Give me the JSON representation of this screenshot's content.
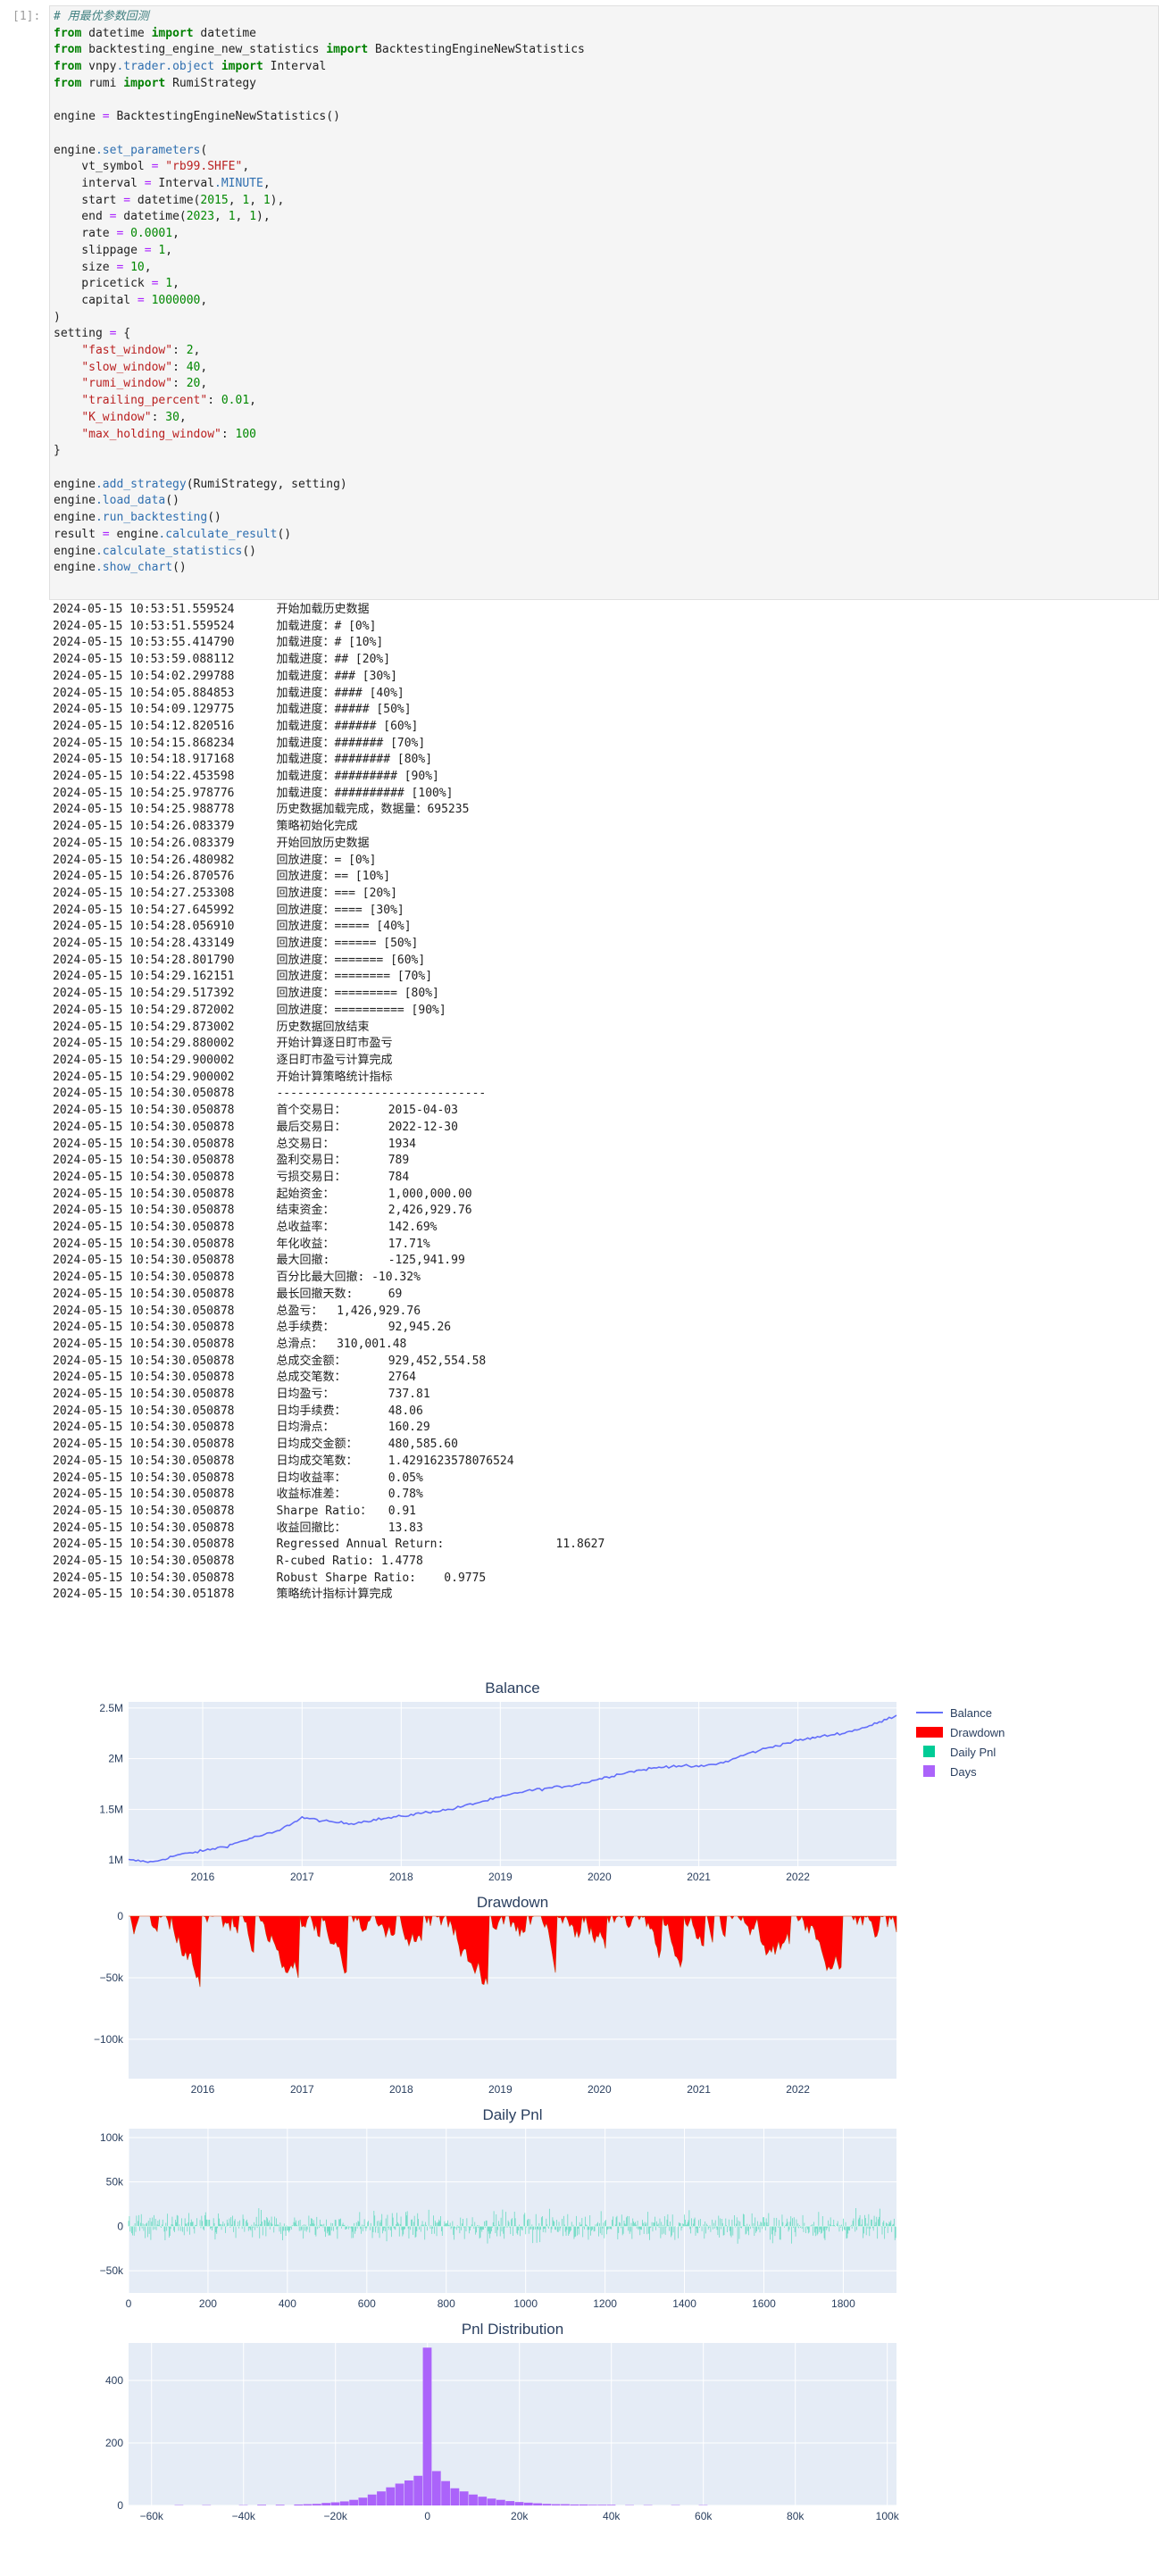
{
  "cell": {
    "prompt": "[1]:",
    "code_lines": [
      [
        [
          "c",
          "# 用最优参数回测"
        ]
      ],
      [
        [
          "k",
          "from"
        ],
        [
          "t",
          " datetime "
        ],
        [
          "k",
          "import"
        ],
        [
          "t",
          " datetime"
        ]
      ],
      [
        [
          "k",
          "from"
        ],
        [
          "t",
          " backtesting_engine_new_statistics "
        ],
        [
          "k",
          "import"
        ],
        [
          "t",
          " BacktestingEngineNewStatistics"
        ]
      ],
      [
        [
          "k",
          "from"
        ],
        [
          "t",
          " vnpy"
        ],
        [
          "f",
          ".trader.object"
        ],
        [
          "t",
          " "
        ],
        [
          "k",
          "import"
        ],
        [
          "t",
          " Interval"
        ]
      ],
      [
        [
          "k",
          "from"
        ],
        [
          "t",
          " rumi "
        ],
        [
          "k",
          "import"
        ],
        [
          "t",
          " RumiStrategy"
        ]
      ],
      [
        [
          "t",
          ""
        ]
      ],
      [
        [
          "t",
          "engine "
        ],
        [
          "o",
          "="
        ],
        [
          "t",
          " BacktestingEngineNewStatistics()"
        ]
      ],
      [
        [
          "t",
          ""
        ]
      ],
      [
        [
          "t",
          "engine"
        ],
        [
          "f",
          ".set_parameters"
        ],
        [
          "t",
          "("
        ]
      ],
      [
        [
          "t",
          "    vt_symbol "
        ],
        [
          "o",
          "="
        ],
        [
          "t",
          " "
        ],
        [
          "s",
          "\"rb99.SHFE\""
        ],
        [
          "t",
          ","
        ]
      ],
      [
        [
          "t",
          "    interval "
        ],
        [
          "o",
          "="
        ],
        [
          "t",
          " Interval"
        ],
        [
          "f",
          ".MINUTE"
        ],
        [
          "t",
          ","
        ]
      ],
      [
        [
          "t",
          "    start "
        ],
        [
          "o",
          "="
        ],
        [
          "t",
          " datetime("
        ],
        [
          "n",
          "2015"
        ],
        [
          "t",
          ", "
        ],
        [
          "n",
          "1"
        ],
        [
          "t",
          ", "
        ],
        [
          "n",
          "1"
        ],
        [
          "t",
          "),"
        ]
      ],
      [
        [
          "t",
          "    end "
        ],
        [
          "o",
          "="
        ],
        [
          "t",
          " datetime("
        ],
        [
          "n",
          "2023"
        ],
        [
          "t",
          ", "
        ],
        [
          "n",
          "1"
        ],
        [
          "t",
          ", "
        ],
        [
          "n",
          "1"
        ],
        [
          "t",
          "),"
        ]
      ],
      [
        [
          "t",
          "    rate "
        ],
        [
          "o",
          "="
        ],
        [
          "t",
          " "
        ],
        [
          "n",
          "0.0001"
        ],
        [
          "t",
          ","
        ]
      ],
      [
        [
          "t",
          "    slippage "
        ],
        [
          "o",
          "="
        ],
        [
          "t",
          " "
        ],
        [
          "n",
          "1"
        ],
        [
          "t",
          ","
        ]
      ],
      [
        [
          "t",
          "    size "
        ],
        [
          "o",
          "="
        ],
        [
          "t",
          " "
        ],
        [
          "n",
          "10"
        ],
        [
          "t",
          ","
        ]
      ],
      [
        [
          "t",
          "    pricetick "
        ],
        [
          "o",
          "="
        ],
        [
          "t",
          " "
        ],
        [
          "n",
          "1"
        ],
        [
          "t",
          ","
        ]
      ],
      [
        [
          "t",
          "    capital "
        ],
        [
          "o",
          "="
        ],
        [
          "t",
          " "
        ],
        [
          "n",
          "1000000"
        ],
        [
          "t",
          ","
        ]
      ],
      [
        [
          "t",
          ")"
        ]
      ],
      [
        [
          "t",
          "setting "
        ],
        [
          "o",
          "="
        ],
        [
          "t",
          " {"
        ]
      ],
      [
        [
          "t",
          "    "
        ],
        [
          "s",
          "\"fast_window\""
        ],
        [
          "t",
          ": "
        ],
        [
          "n",
          "2"
        ],
        [
          "t",
          ","
        ]
      ],
      [
        [
          "t",
          "    "
        ],
        [
          "s",
          "\"slow_window\""
        ],
        [
          "t",
          ": "
        ],
        [
          "n",
          "40"
        ],
        [
          "t",
          ","
        ]
      ],
      [
        [
          "t",
          "    "
        ],
        [
          "s",
          "\"rumi_window\""
        ],
        [
          "t",
          ": "
        ],
        [
          "n",
          "20"
        ],
        [
          "t",
          ","
        ]
      ],
      [
        [
          "t",
          "    "
        ],
        [
          "s",
          "\"trailing_percent\""
        ],
        [
          "t",
          ": "
        ],
        [
          "n",
          "0.01"
        ],
        [
          "t",
          ","
        ]
      ],
      [
        [
          "t",
          "    "
        ],
        [
          "s",
          "\"K_window\""
        ],
        [
          "t",
          ": "
        ],
        [
          "n",
          "30"
        ],
        [
          "t",
          ","
        ]
      ],
      [
        [
          "t",
          "    "
        ],
        [
          "s",
          "\"max_holding_window\""
        ],
        [
          "t",
          ": "
        ],
        [
          "n",
          "100"
        ]
      ],
      [
        [
          "t",
          "}"
        ]
      ],
      [
        [
          "t",
          ""
        ]
      ],
      [
        [
          "t",
          "engine"
        ],
        [
          "f",
          ".add_strategy"
        ],
        [
          "t",
          "(RumiStrategy, setting)"
        ]
      ],
      [
        [
          "t",
          "engine"
        ],
        [
          "f",
          ".load_data"
        ],
        [
          "t",
          "()"
        ]
      ],
      [
        [
          "t",
          "engine"
        ],
        [
          "f",
          ".run_backtesting"
        ],
        [
          "t",
          "()"
        ]
      ],
      [
        [
          "t",
          "result "
        ],
        [
          "o",
          "="
        ],
        [
          "t",
          " engine"
        ],
        [
          "f",
          ".calculate_result"
        ],
        [
          "t",
          "()"
        ]
      ],
      [
        [
          "t",
          "engine"
        ],
        [
          "f",
          ".calculate_statistics"
        ],
        [
          "t",
          "()"
        ]
      ],
      [
        [
          "t",
          "engine"
        ],
        [
          "f",
          ".show_chart"
        ],
        [
          "t",
          "()"
        ]
      ]
    ]
  },
  "output_lines": [
    [
      "2024-05-15 10:53:51.559524",
      "开始加载历史数据"
    ],
    [
      "2024-05-15 10:53:51.559524",
      "加载进度：# [0%]"
    ],
    [
      "2024-05-15 10:53:55.414790",
      "加载进度：# [10%]"
    ],
    [
      "2024-05-15 10:53:59.088112",
      "加载进度：## [20%]"
    ],
    [
      "2024-05-15 10:54:02.299788",
      "加载进度：### [30%]"
    ],
    [
      "2024-05-15 10:54:05.884853",
      "加载进度：#### [40%]"
    ],
    [
      "2024-05-15 10:54:09.129775",
      "加载进度：##### [50%]"
    ],
    [
      "2024-05-15 10:54:12.820516",
      "加载进度：###### [60%]"
    ],
    [
      "2024-05-15 10:54:15.868234",
      "加载进度：####### [70%]"
    ],
    [
      "2024-05-15 10:54:18.917168",
      "加载进度：######## [80%]"
    ],
    [
      "2024-05-15 10:54:22.453598",
      "加载进度：######### [90%]"
    ],
    [
      "2024-05-15 10:54:25.978776",
      "加载进度：########## [100%]"
    ],
    [
      "2024-05-15 10:54:25.988778",
      "历史数据加载完成，数据量：695235"
    ],
    [
      "2024-05-15 10:54:26.083379",
      "策略初始化完成"
    ],
    [
      "2024-05-15 10:54:26.083379",
      "开始回放历史数据"
    ],
    [
      "2024-05-15 10:54:26.480982",
      "回放进度：= [0%]"
    ],
    [
      "2024-05-15 10:54:26.870576",
      "回放进度：== [10%]"
    ],
    [
      "2024-05-15 10:54:27.253308",
      "回放进度：=== [20%]"
    ],
    [
      "2024-05-15 10:54:27.645992",
      "回放进度：==== [30%]"
    ],
    [
      "2024-05-15 10:54:28.056910",
      "回放进度：===== [40%]"
    ],
    [
      "2024-05-15 10:54:28.433149",
      "回放进度：====== [50%]"
    ],
    [
      "2024-05-15 10:54:28.801790",
      "回放进度：======= [60%]"
    ],
    [
      "2024-05-15 10:54:29.162151",
      "回放进度：======== [70%]"
    ],
    [
      "2024-05-15 10:54:29.517392",
      "回放进度：========= [80%]"
    ],
    [
      "2024-05-15 10:54:29.872002",
      "回放进度：========== [90%]"
    ],
    [
      "2024-05-15 10:54:29.873002",
      "历史数据回放结束"
    ],
    [
      "2024-05-15 10:54:29.880002",
      "开始计算逐日盯市盈亏"
    ],
    [
      "2024-05-15 10:54:29.900002",
      "逐日盯市盈亏计算完成"
    ],
    [
      "2024-05-15 10:54:29.900002",
      "开始计算策略统计指标"
    ],
    [
      "2024-05-15 10:54:30.050878",
      "------------------------------"
    ],
    [
      "2024-05-15 10:54:30.050878",
      "首个交易日：\t2015-04-03"
    ],
    [
      "2024-05-15 10:54:30.050878",
      "最后交易日：\t2022-12-30"
    ],
    [
      "2024-05-15 10:54:30.050878",
      "总交易日：\t1934"
    ],
    [
      "2024-05-15 10:54:30.050878",
      "盈利交易日：\t789"
    ],
    [
      "2024-05-15 10:54:30.050878",
      "亏损交易日：\t784"
    ],
    [
      "2024-05-15 10:54:30.050878",
      "起始资金：\t1,000,000.00"
    ],
    [
      "2024-05-15 10:54:30.050878",
      "结束资金：\t2,426,929.76"
    ],
    [
      "2024-05-15 10:54:30.050878",
      "总收益率：\t142.69%"
    ],
    [
      "2024-05-15 10:54:30.050878",
      "年化收益：\t17.71%"
    ],
    [
      "2024-05-15 10:54:30.050878",
      "最大回撤: \t-125,941.99"
    ],
    [
      "2024-05-15 10:54:30.050878",
      "百分比最大回撤: -10.32%"
    ],
    [
      "2024-05-15 10:54:30.050878",
      "最长回撤天数: \t69"
    ],
    [
      "2024-05-15 10:54:30.050878",
      "总盈亏：  1,426,929.76"
    ],
    [
      "2024-05-15 10:54:30.050878",
      "总手续费：\t92,945.26"
    ],
    [
      "2024-05-15 10:54:30.050878",
      "总滑点：  310,001.48"
    ],
    [
      "2024-05-15 10:54:30.050878",
      "总成交金额：\t929,452,554.58"
    ],
    [
      "2024-05-15 10:54:30.050878",
      "总成交笔数：\t2764"
    ],
    [
      "2024-05-15 10:54:30.050878",
      "日均盈亏：\t737.81"
    ],
    [
      "2024-05-15 10:54:30.050878",
      "日均手续费：\t48.06"
    ],
    [
      "2024-05-15 10:54:30.050878",
      "日均滑点：\t160.29"
    ],
    [
      "2024-05-15 10:54:30.050878",
      "日均成交金额：\t480,585.60"
    ],
    [
      "2024-05-15 10:54:30.050878",
      "日均成交笔数：\t1.4291623578076524"
    ],
    [
      "2024-05-15 10:54:30.050878",
      "日均收益率：\t0.05%"
    ],
    [
      "2024-05-15 10:54:30.050878",
      "收益标准差：\t0.78%"
    ],
    [
      "2024-05-15 10:54:30.050878",
      "Sharpe Ratio：\t0.91"
    ],
    [
      "2024-05-15 10:54:30.050878",
      "收益回撤比：\t13.83"
    ],
    [
      "2024-05-15 10:54:30.050878",
      "Regressed Annual Return:\t\t11.8627"
    ],
    [
      "2024-05-15 10:54:30.050878",
      "R-cubed Ratio: 1.4778"
    ],
    [
      "2024-05-15 10:54:30.050878",
      "Robust Sharpe Ratio:    0.9775"
    ],
    [
      "2024-05-15 10:54:30.051878",
      "策略统计指标计算完成"
    ]
  ],
  "colors": {
    "balance": "#636efa",
    "drawdown": "#ff0000",
    "daily_pnl": "#00cc96",
    "days": "#ab63fa",
    "plot_bg": "#e5ecf6"
  },
  "chart_data": [
    {
      "type": "line",
      "title": "Balance",
      "series": [
        {
          "name": "Balance"
        }
      ],
      "x_ticks": [
        "2016",
        "2017",
        "2018",
        "2019",
        "2020",
        "2021",
        "2022"
      ],
      "y_ticks": [
        "1M",
        "1.5M",
        "2M",
        "2.5M"
      ],
      "x_range": [
        "2015-04-03",
        "2022-12-30"
      ],
      "ylim": [
        940000,
        2560000
      ],
      "x": [
        "2015-04-03",
        "2015-07-01",
        "2015-10-01",
        "2016-01-01",
        "2016-04-01",
        "2016-07-01",
        "2016-10-01",
        "2017-01-01",
        "2017-04-01",
        "2017-07-01",
        "2017-10-01",
        "2018-01-01",
        "2018-04-01",
        "2018-07-01",
        "2018-10-01",
        "2019-01-01",
        "2019-04-01",
        "2019-07-01",
        "2019-10-01",
        "2020-01-01",
        "2020-04-01",
        "2020-07-01",
        "2020-10-01",
        "2021-01-01",
        "2021-04-01",
        "2021-07-01",
        "2021-10-01",
        "2022-01-01",
        "2022-04-01",
        "2022-07-01",
        "2022-10-01",
        "2022-12-30"
      ],
      "values": [
        1000000,
        980000,
        1050000,
        1090000,
        1140000,
        1220000,
        1280000,
        1420000,
        1380000,
        1360000,
        1400000,
        1430000,
        1470000,
        1500000,
        1560000,
        1620000,
        1680000,
        1710000,
        1740000,
        1800000,
        1860000,
        1900000,
        1930000,
        1920000,
        1960000,
        2050000,
        2120000,
        2180000,
        2220000,
        2260000,
        2330000,
        2427000
      ]
    },
    {
      "type": "area",
      "title": "Drawdown",
      "series": [
        {
          "name": "Drawdown"
        }
      ],
      "x_ticks": [
        "2016",
        "2017",
        "2018",
        "2019",
        "2020",
        "2021",
        "2022"
      ],
      "y_ticks": [
        "0",
        "−50k",
        "−100k"
      ],
      "ylim": [
        -132000,
        0
      ],
      "min_drawdown": -125941.99
    },
    {
      "type": "bar",
      "title": "Daily Pnl",
      "series": [
        {
          "name": "Daily Pnl"
        }
      ],
      "x_ticks": [
        "0",
        "200",
        "400",
        "600",
        "800",
        "1000",
        "1200",
        "1400",
        "1600",
        "1800"
      ],
      "y_ticks": [
        "−50k",
        "0",
        "50k",
        "100k"
      ],
      "xlim": [
        0,
        1934
      ],
      "ylim": [
        -75000,
        110000
      ]
    },
    {
      "type": "bar",
      "title": "Pnl Distribution",
      "series": [
        {
          "name": "Days"
        }
      ],
      "x_ticks": [
        "−60k",
        "−40k",
        "−20k",
        "0",
        "20k",
        "40k",
        "60k",
        "80k",
        "100k"
      ],
      "y_ticks": [
        "0",
        "200",
        "400"
      ],
      "xlim": [
        -65000,
        102000
      ],
      "ylim": [
        0,
        520
      ],
      "bin_width": 2000,
      "bins_x": [
        -54000,
        -48000,
        -40000,
        -36000,
        -32000,
        -28000,
        -26000,
        -24000,
        -22000,
        -20000,
        -18000,
        -16000,
        -14000,
        -12000,
        -10000,
        -8000,
        -6000,
        -4000,
        -2000,
        0,
        2000,
        4000,
        6000,
        8000,
        10000,
        12000,
        14000,
        16000,
        18000,
        20000,
        22000,
        24000,
        26000,
        28000,
        30000,
        32000,
        34000,
        36000,
        38000,
        40000,
        44000,
        48000,
        54000,
        60000
      ],
      "bins_count": [
        1,
        1,
        1,
        2,
        2,
        3,
        4,
        5,
        8,
        10,
        13,
        18,
        25,
        35,
        45,
        58,
        70,
        80,
        95,
        505,
        110,
        78,
        55,
        45,
        35,
        28,
        22,
        18,
        14,
        11,
        9,
        7,
        5,
        4,
        4,
        3,
        3,
        2,
        2,
        2,
        1,
        1,
        1,
        1
      ]
    }
  ],
  "legend": [
    "Balance",
    "Drawdown",
    "Daily Pnl",
    "Days"
  ]
}
